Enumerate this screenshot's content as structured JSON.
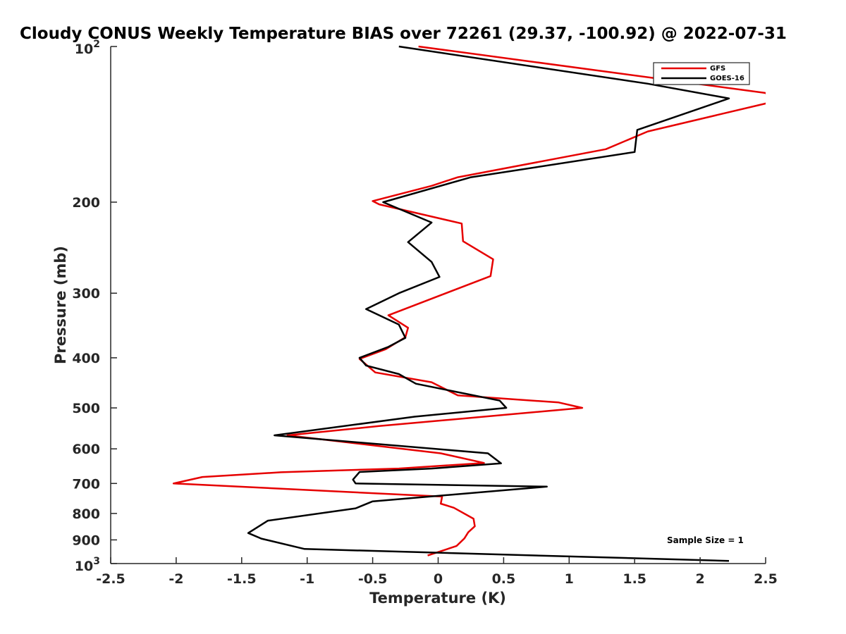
{
  "chart_data": {
    "type": "line",
    "title": "Cloudy CONUS Weekly Temperature BIAS over 72261 (29.37, -100.92) @ 2022-07-31",
    "xlabel": "Temperature (K)",
    "ylabel": "Pressure (mb)",
    "xlim": [
      -2.5,
      2.5
    ],
    "ylim": [
      100,
      1000
    ],
    "y_scale": "log",
    "y_reversed": true,
    "x_ticks": [
      "-2.5",
      "-2",
      "-1.5",
      "-1",
      "-0.5",
      "0",
      "0.5",
      "1",
      "1.5",
      "2",
      "2.5"
    ],
    "y_ticks": [
      {
        "value": 100,
        "base": "10",
        "exp": "2"
      },
      {
        "value": 200,
        "label": "200"
      },
      {
        "value": 300,
        "label": "300"
      },
      {
        "value": 400,
        "label": "400"
      },
      {
        "value": 500,
        "label": "500"
      },
      {
        "value": 600,
        "label": "600"
      },
      {
        "value": 700,
        "label": "700"
      },
      {
        "value": 800,
        "label": "800"
      },
      {
        "value": 900,
        "label": "900"
      },
      {
        "value": 1000,
        "base": "10",
        "exp": "3"
      }
    ],
    "legend_position": "top-right",
    "annotation": "Sample Size = 1",
    "series": [
      {
        "name": "GFS",
        "color": "#e60000",
        "points": [
          [
            -0.15,
            100
          ],
          [
            2.5,
            123
          ],
          [
            2.55,
            128
          ],
          [
            1.6,
            146
          ],
          [
            1.28,
            158
          ],
          [
            0.15,
            179
          ],
          [
            -0.05,
            186
          ],
          [
            -0.5,
            199
          ],
          [
            -0.45,
            202
          ],
          [
            0.18,
            220
          ],
          [
            0.19,
            238
          ],
          [
            0.42,
            258
          ],
          [
            0.4,
            278
          ],
          [
            -0.38,
            331
          ],
          [
            -0.23,
            350
          ],
          [
            -0.25,
            365
          ],
          [
            -0.4,
            385
          ],
          [
            -0.6,
            402
          ],
          [
            -0.48,
            427
          ],
          [
            -0.05,
            446
          ],
          [
            0.15,
            473
          ],
          [
            0.92,
            488
          ],
          [
            1.1,
            500
          ],
          [
            -0.45,
            542
          ],
          [
            -1.15,
            565
          ],
          [
            0.02,
            612
          ],
          [
            0.35,
            639
          ],
          [
            -0.3,
            655
          ],
          [
            -1.2,
            666
          ],
          [
            -1.8,
            680
          ],
          [
            -2.02,
            700
          ],
          [
            0.03,
            742
          ],
          [
            0.02,
            766
          ],
          [
            0.12,
            780
          ],
          [
            0.27,
            819
          ],
          [
            0.28,
            847
          ],
          [
            0.23,
            870
          ],
          [
            0.2,
            894
          ],
          [
            0.14,
            925
          ],
          [
            -0.08,
            965
          ]
        ]
      },
      {
        "name": "GOES-16",
        "color": "#000000",
        "points": [
          [
            -0.3,
            100
          ],
          [
            1.6,
            118
          ],
          [
            2.22,
            126
          ],
          [
            1.52,
            145
          ],
          [
            1.5,
            160
          ],
          [
            0.25,
            179
          ],
          [
            -0.42,
            200
          ],
          [
            -0.05,
            219
          ],
          [
            -0.23,
            239
          ],
          [
            -0.05,
            261
          ],
          [
            0.01,
            279
          ],
          [
            -0.3,
            300
          ],
          [
            -0.55,
            322
          ],
          [
            -0.3,
            345
          ],
          [
            -0.25,
            366
          ],
          [
            -0.38,
            381
          ],
          [
            -0.6,
            400
          ],
          [
            -0.55,
            414
          ],
          [
            -0.3,
            430
          ],
          [
            -0.17,
            449
          ],
          [
            0.47,
            484
          ],
          [
            0.52,
            500
          ],
          [
            -0.18,
            520
          ],
          [
            -1.25,
            565
          ],
          [
            0.38,
            612
          ],
          [
            0.48,
            640
          ],
          [
            -0.05,
            655
          ],
          [
            -0.6,
            665
          ],
          [
            -0.65,
            688
          ],
          [
            -0.63,
            700
          ],
          [
            0.83,
            710
          ],
          [
            -0.5,
            758
          ],
          [
            -0.63,
            782
          ],
          [
            -1.3,
            826
          ],
          [
            -1.45,
            873
          ],
          [
            -1.35,
            895
          ],
          [
            -1.02,
            937
          ],
          [
            2.22,
            988
          ]
        ]
      }
    ]
  }
}
